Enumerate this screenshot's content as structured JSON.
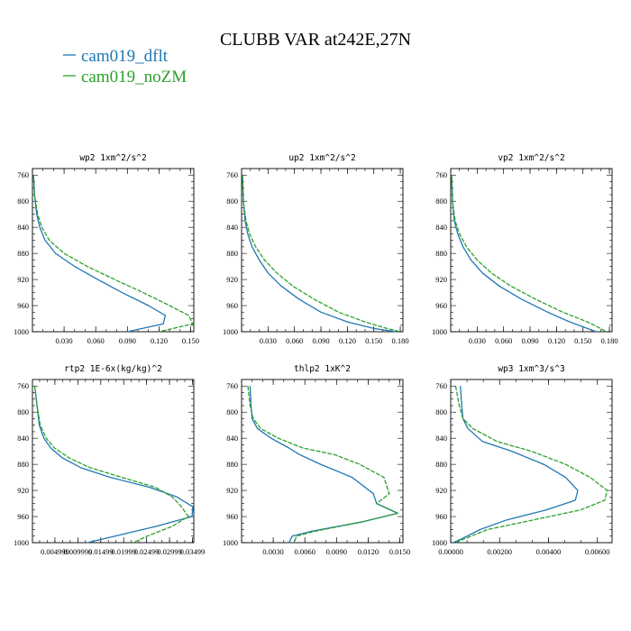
{
  "title": "CLUBB VAR at242E,27N",
  "legend": [
    {
      "label": "cam019_dflt",
      "color": "#1f77b4"
    },
    {
      "label": "cam019_noZM",
      "color": "#2ca02c"
    }
  ],
  "chart_data": [
    {
      "type": "line",
      "title": "wp2   1xm^2/s^2",
      "ylim": [
        1000,
        750
      ],
      "y_ticks": [
        760,
        800,
        840,
        880,
        920,
        960,
        1000
      ],
      "xlim": [
        0,
        0.153
      ],
      "x_ticks": [
        0.03,
        0.06,
        0.09,
        0.12,
        0.15
      ],
      "x_tick_labels": [
        "0.030",
        "0.060",
        "0.090",
        "0.120",
        "0.150"
      ],
      "grid": false,
      "series": [
        {
          "name": "cam019_dflt",
          "x": [
            0.001,
            0.002,
            0.004,
            0.007,
            0.012,
            0.022,
            0.04,
            0.062,
            0.085,
            0.11,
            0.126,
            0.124,
            0.09
          ],
          "y": [
            760,
            790,
            820,
            840,
            860,
            880,
            900,
            920,
            940,
            960,
            975,
            988,
            1000
          ]
        },
        {
          "name": "cam019_noZM",
          "x": [
            0.001,
            0.002,
            0.005,
            0.009,
            0.016,
            0.03,
            0.052,
            0.078,
            0.105,
            0.13,
            0.148,
            0.152,
            0.12
          ],
          "y": [
            760,
            790,
            820,
            840,
            860,
            880,
            900,
            920,
            940,
            960,
            975,
            988,
            1000
          ]
        }
      ]
    },
    {
      "type": "line",
      "title": "up2   1xm^2/s^2",
      "ylim": [
        1000,
        750
      ],
      "y_ticks": [
        760,
        800,
        840,
        880,
        920,
        960,
        1000
      ],
      "xlim": [
        0,
        0.183
      ],
      "x_ticks": [
        0.03,
        0.06,
        0.09,
        0.12,
        0.15,
        0.18
      ],
      "x_tick_labels": [
        "0.030",
        "0.060",
        "0.090",
        "0.120",
        "0.150",
        "0.180"
      ],
      "grid": false,
      "series": [
        {
          "name": "cam019_dflt",
          "x": [
            0.001,
            0.002,
            0.004,
            0.007,
            0.012,
            0.02,
            0.03,
            0.045,
            0.065,
            0.09,
            0.12,
            0.15,
            0.175
          ],
          "y": [
            760,
            800,
            830,
            850,
            870,
            890,
            910,
            930,
            950,
            970,
            985,
            995,
            1000
          ]
        },
        {
          "name": "cam019_noZM",
          "x": [
            0.001,
            0.002,
            0.005,
            0.009,
            0.016,
            0.026,
            0.04,
            0.058,
            0.082,
            0.11,
            0.14,
            0.165,
            0.18
          ],
          "y": [
            760,
            800,
            830,
            850,
            870,
            890,
            910,
            930,
            950,
            970,
            985,
            995,
            1000
          ]
        }
      ]
    },
    {
      "type": "line",
      "title": "vp2   1xm^2/s^2",
      "ylim": [
        1000,
        750
      ],
      "y_ticks": [
        760,
        800,
        840,
        880,
        920,
        960,
        1000
      ],
      "xlim": [
        0,
        0.183
      ],
      "x_ticks": [
        0.03,
        0.06,
        0.09,
        0.12,
        0.15,
        0.18
      ],
      "x_tick_labels": [
        "0.030",
        "0.060",
        "0.090",
        "0.120",
        "0.150",
        "0.180"
      ],
      "grid": false,
      "series": [
        {
          "name": "cam019_dflt",
          "x": [
            0.001,
            0.002,
            0.004,
            0.008,
            0.014,
            0.023,
            0.036,
            0.055,
            0.08,
            0.11,
            0.135,
            0.155,
            0.165
          ],
          "y": [
            760,
            800,
            830,
            850,
            870,
            890,
            910,
            930,
            950,
            970,
            985,
            995,
            1000
          ]
        },
        {
          "name": "cam019_noZM",
          "x": [
            0.001,
            0.002,
            0.005,
            0.01,
            0.018,
            0.03,
            0.046,
            0.068,
            0.096,
            0.127,
            0.155,
            0.17,
            0.176
          ],
          "y": [
            760,
            800,
            830,
            850,
            870,
            890,
            910,
            930,
            950,
            970,
            985,
            995,
            1000
          ]
        }
      ]
    },
    {
      "type": "line",
      "title": "rtp2   1E-6x(kg/kg)^2",
      "ylim": [
        1000,
        750
      ],
      "y_ticks": [
        760,
        800,
        840,
        880,
        920,
        960,
        1000
      ],
      "xlim": [
        0,
        3.52e-05
      ],
      "x_ticks": [
        4.9e-06,
        9.9e-06,
        1.49e-05,
        1.99e-05,
        2.49e-05,
        2.99e-05,
        3.49e-05
      ],
      "x_tick_labels": [
        "0.004999",
        "0.009999",
        "0.01499",
        "0.01999",
        "0.02499",
        "0.02999",
        "0.03499"
      ],
      "x_tick_label_render": "overlapping",
      "grid": false,
      "series": [
        {
          "name": "cam019_dflt",
          "x": [
            5e-07,
            1e-06,
            1.5e-06,
            2.5e-06,
            4e-06,
            6.5e-06,
            1.05e-05,
            1.7e-05,
            2.55e-05,
            3.15e-05,
            3.5e-05,
            3.48e-05,
            2.7e-05,
            1.8e-05,
            1.2e-05
          ],
          "y": [
            760,
            790,
            820,
            840,
            855,
            870,
            885,
            900,
            915,
            930,
            945,
            960,
            975,
            990,
            1000
          ]
        },
        {
          "name": "cam019_noZM",
          "x": [
            5e-07,
            1e-06,
            1.7e-06,
            3e-06,
            4.8e-06,
            8e-06,
            1.25e-05,
            1.95e-05,
            2.68e-05,
            3.05e-05,
            3.25e-05,
            3.4e-05,
            3.05e-05,
            2.5e-05,
            2.2e-05
          ],
          "y": [
            760,
            790,
            820,
            840,
            855,
            870,
            885,
            900,
            915,
            930,
            945,
            960,
            975,
            990,
            1000
          ]
        }
      ]
    },
    {
      "type": "line",
      "title": "thlp2   1xK^2",
      "ylim": [
        1000,
        750
      ],
      "y_ticks": [
        760,
        800,
        840,
        880,
        920,
        960,
        1000
      ],
      "xlim": [
        0,
        0.0153
      ],
      "x_ticks": [
        0.003,
        0.006,
        0.009,
        0.012,
        0.015
      ],
      "x_tick_labels": [
        "0.0030",
        "0.0060",
        "0.0090",
        "0.0120",
        "0.0150"
      ],
      "grid": false,
      "series": [
        {
          "name": "cam019_dflt",
          "x": [
            0.0008,
            0.0009,
            0.001,
            0.0015,
            0.0028,
            0.0045,
            0.0055,
            0.0075,
            0.0105,
            0.0125,
            0.0128,
            0.0148,
            0.0115,
            0.0065,
            0.0048,
            0.0045
          ],
          "y": [
            760,
            790,
            810,
            825,
            840,
            855,
            865,
            880,
            900,
            925,
            940,
            955,
            968,
            983,
            990,
            1000
          ]
        },
        {
          "name": "cam019_noZM",
          "x": [
            0.0006,
            0.0008,
            0.0011,
            0.0018,
            0.0035,
            0.0058,
            0.0088,
            0.0112,
            0.0135,
            0.014,
            0.0128,
            0.0148,
            0.0115,
            0.0068,
            0.0052,
            0.005
          ],
          "y": [
            760,
            790,
            810,
            825,
            840,
            855,
            865,
            880,
            900,
            925,
            940,
            955,
            968,
            983,
            990,
            1000
          ]
        }
      ]
    },
    {
      "type": "line",
      "title": "wp3   1xm^3/s^3",
      "ylim": [
        1000,
        750
      ],
      "y_ticks": [
        760,
        800,
        840,
        880,
        920,
        960,
        1000
      ],
      "xlim": [
        0,
        0.0066
      ],
      "x_ticks": [
        0,
        0.002,
        0.004,
        0.006
      ],
      "x_tick_labels": [
        "0.00000",
        "0.00200",
        "0.00400",
        "0.00600"
      ],
      "grid": false,
      "series": [
        {
          "name": "cam019_dflt",
          "x": [
            0.0004,
            0.00045,
            0.0005,
            0.0007,
            0.0013,
            0.0025,
            0.0038,
            0.0047,
            0.0052,
            0.0051,
            0.0039,
            0.0023,
            0.0012,
            0.0004,
            0.0001
          ],
          "y": [
            760,
            790,
            810,
            825,
            845,
            860,
            880,
            900,
            920,
            935,
            950,
            965,
            980,
            995,
            1000
          ]
        },
        {
          "name": "cam019_noZM",
          "x": [
            0.0002,
            0.00035,
            0.0005,
            0.0009,
            0.0019,
            0.0033,
            0.0047,
            0.0057,
            0.0064,
            0.0063,
            0.0053,
            0.0034,
            0.0015,
            0.0005,
            0.0002
          ],
          "y": [
            760,
            790,
            810,
            825,
            845,
            860,
            880,
            900,
            920,
            935,
            950,
            965,
            980,
            995,
            1000
          ]
        }
      ]
    }
  ]
}
